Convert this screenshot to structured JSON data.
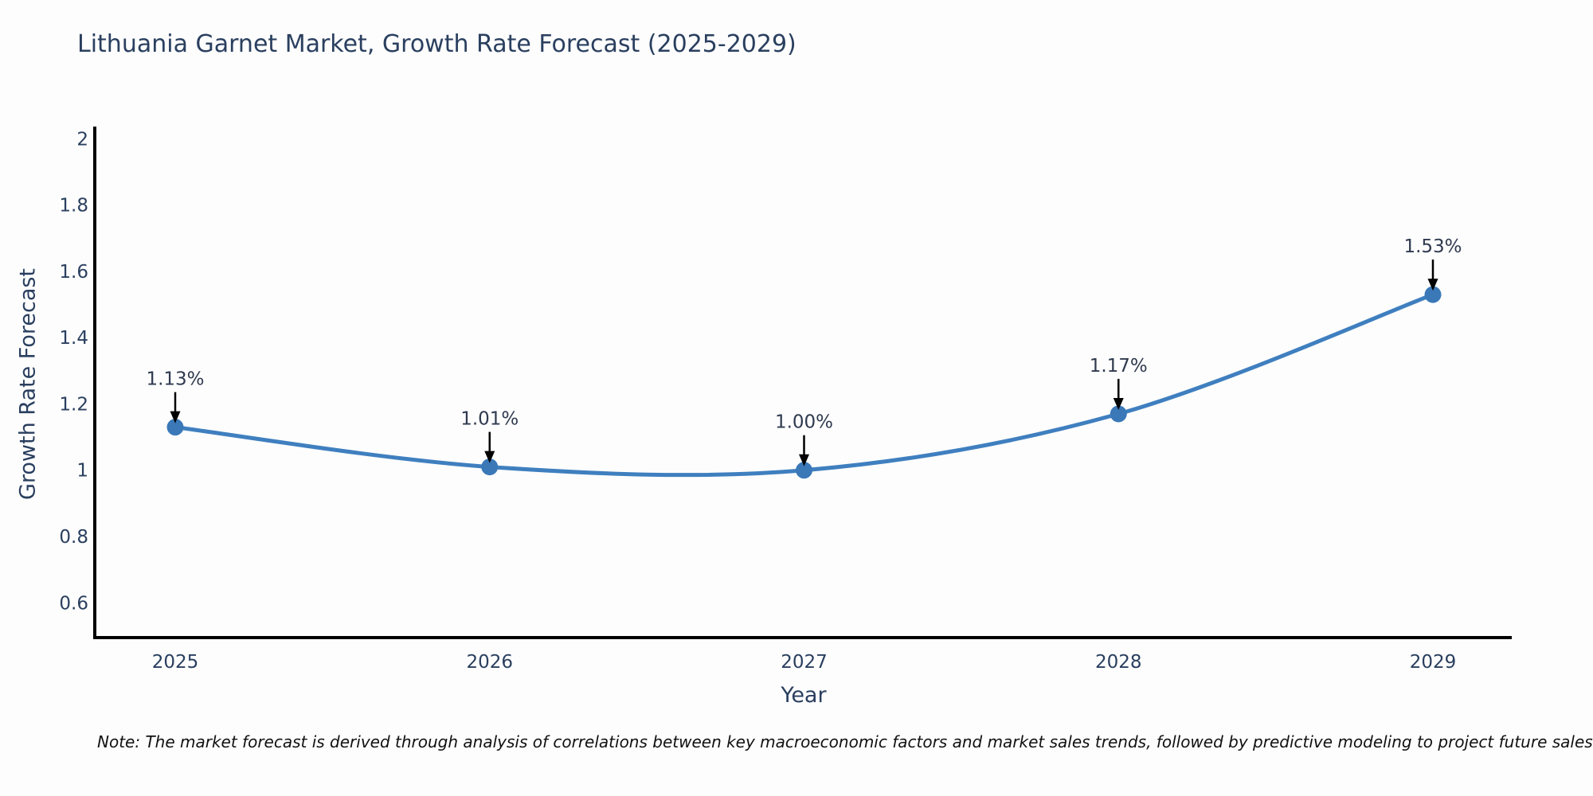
{
  "note": "Note: The market forecast is derived through analysis of correlations between key macroeconomic factors and market sales trends, followed by predictive modeling to project future sales",
  "colors": {
    "background": "#fdfdfd",
    "line": "#3f7fbf",
    "marker": "#3a78b8",
    "title": "#2a3f5f",
    "tick": "#2a3f5f",
    "axis": "#000000",
    "annotation_text": "#2f3a4f",
    "arrow": "#000000"
  },
  "chart_data": {
    "type": "line",
    "title": "Lithuania Garnet Market, Growth Rate Forecast (2025-2029)",
    "xlabel": "Year",
    "ylabel": "Growth Rate Forecast",
    "categories": [
      "2025",
      "2026",
      "2027",
      "2028",
      "2029"
    ],
    "values": [
      1.13,
      1.01,
      1.0,
      1.17,
      1.53
    ],
    "point_labels": [
      "1.13%",
      "1.01%",
      "1.00%",
      "1.17%",
      "1.53%"
    ],
    "yticks": [
      0.6,
      0.8,
      1,
      1.2,
      1.4,
      1.6,
      1.8,
      2
    ],
    "ytick_labels": [
      "0.6",
      "0.8",
      "1",
      "1.2",
      "1.4",
      "1.6",
      "1.8",
      "2"
    ],
    "ylim": [
      0.495,
      2.037
    ],
    "grid": false,
    "legend": false,
    "line_shape": "spline",
    "annotations": "value labels with down arrows above each point"
  }
}
